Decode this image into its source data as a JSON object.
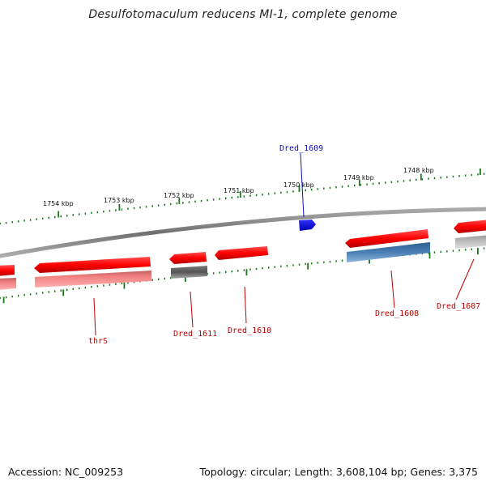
{
  "title": "Desulfotomaculum reducens MI-1, complete genome",
  "footer": {
    "accession": "Accession: NC_009253",
    "summary": "Topology: circular; Length: 3,608,104 bp; Genes: 3,375"
  },
  "axis": {
    "ticks": [
      "1754 kbp",
      "1753 kbp",
      "1752 kbp",
      "1751 kbp",
      "1750 kbp",
      "1749 kbp",
      "1748 kbp"
    ]
  },
  "genes": [
    {
      "label": "Dred_1609",
      "color": "#1010c0"
    },
    {
      "label": "thrS",
      "color": "#c00000"
    },
    {
      "label": "Dred_1611",
      "color": "#c00000"
    },
    {
      "label": "Dred_1610",
      "color": "#c00000"
    },
    {
      "label": "Dred_1608",
      "color": "#c00000"
    },
    {
      "label": "Dred_1607",
      "color": "#c00000"
    }
  ],
  "colors": {
    "gene_forward": "#ff0000",
    "gene_reverse": "#ff0000",
    "cds_pink": "#f08080",
    "cds_dark": "#555555",
    "cds_blue": "#4a7fb5",
    "cds_light": "#c0c0c0",
    "ticks": "#1a7a1a",
    "backbone": "#808080"
  }
}
